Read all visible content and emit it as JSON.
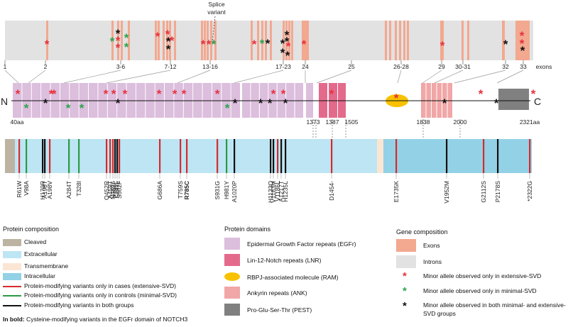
{
  "colors": {
    "exon": "#f3a890",
    "intron": "#e2e2e2",
    "egf": "#dcbedd",
    "lnr": "#e46a8c",
    "ram": "#f8c200",
    "ank": "#f1a7a7",
    "pest": "#808080",
    "cleaved": "#bdb3a2",
    "extracellular": "#bde5f4",
    "transmembrane": "#fbe6d4",
    "intracellular": "#93d1e6",
    "case_line": "#d62b2b",
    "control_line": "#2c9a44",
    "both_line": "#111111",
    "star_case": "#e8313c",
    "star_control": "#2ca44c",
    "star_both": "#111111"
  },
  "gene": {
    "splice_label": "Splice variant",
    "exons_label": "exons",
    "exon_numbers": [
      "1",
      "2",
      "3-6",
      "7-12",
      "13-16",
      "17-23",
      "24",
      "25",
      "26-28",
      "29",
      "30-31",
      "32",
      "33"
    ]
  },
  "protein": {
    "n_label": "N",
    "c_label": "C",
    "positions": [
      "40aa",
      "1373",
      "1387",
      "1505",
      "1838",
      "2000",
      "2321aa"
    ]
  },
  "variants": [
    {
      "label": "R61W",
      "group": "case",
      "bold": false
    },
    {
      "label": "V98A",
      "group": "control",
      "bold": false
    },
    {
      "label": "H170R",
      "group": "both",
      "bold": false
    },
    {
      "label": "A198T",
      "group": "both",
      "bold": false
    },
    {
      "label": "A198V",
      "group": "case",
      "bold": false
    },
    {
      "label": "A284T",
      "group": "control",
      "bold": false
    },
    {
      "label": "T328I",
      "group": "control",
      "bold": false
    },
    {
      "label": "Q452R",
      "group": "case",
      "bold": false
    },
    {
      "label": "A459T",
      "group": "case",
      "bold": false
    },
    {
      "label": "N489S",
      "group": "case",
      "bold": false
    },
    {
      "label": "P496L",
      "group": "both",
      "bold": false
    },
    {
      "label": "S497L",
      "group": "both",
      "bold": false
    },
    {
      "label": "S502F",
      "group": "case",
      "bold": false
    },
    {
      "label": "G686A",
      "group": "case",
      "bold": false
    },
    {
      "label": "T759S",
      "group": "case",
      "bold": false
    },
    {
      "label": "R785C",
      "group": "case",
      "bold": true
    },
    {
      "label": "S931G",
      "group": "case",
      "bold": false
    },
    {
      "label": "H981Y",
      "group": "control",
      "bold": false
    },
    {
      "label": "A1020P",
      "group": "both",
      "bold": false
    },
    {
      "label": "H1133Q",
      "group": "both",
      "bold": false
    },
    {
      "label": "V1183M",
      "group": "both",
      "bold": false
    },
    {
      "label": "V1186L",
      "group": "case",
      "bold": false
    },
    {
      "label": "A1217T",
      "group": "both",
      "bold": false
    },
    {
      "label": "H1235L",
      "group": "both",
      "bold": false
    },
    {
      "label": "D1454-",
      "group": "case",
      "bold": false
    },
    {
      "label": "E1735K",
      "group": "case",
      "bold": false
    },
    {
      "label": "V1952M",
      "group": "both",
      "bold": false
    },
    {
      "label": "G2112S",
      "group": "case",
      "bold": false
    },
    {
      "label": "P2178S",
      "group": "both",
      "bold": false
    },
    {
      "label": "*2322G",
      "group": "case",
      "bold": false
    }
  ],
  "legend": {
    "composition_title": "Protein composition",
    "cleaved": "Cleaved",
    "extracellular": "Extracellular",
    "transmembrane": "Transmembrane",
    "intracellular": "Intracellular",
    "line_case": "Protein-modifying variants only in cases (extensive-SVD)",
    "line_control": "Protein-modifying variants only in controls (minimal-SVD)",
    "line_both": "Protein-modifying variants in both groups",
    "bold_note_bold": "In bold:",
    "bold_note_rest": " Cysteine-modifying variants in the EGFr domain of NOTCH3",
    "domains_title": "Protein domains",
    "egf": "Epidermal Growth Factor repeats (EGFr)",
    "lnr": "Lin-12-Notch repeats (LNR)",
    "ram": "RBPJ-associated molecule (RAM)",
    "ank": "Ankyrin repeats (ANK)",
    "pest": "Pro-Glu-Ser-Thr (PEST)",
    "gene_title": "Gene composition",
    "exons": "Exons",
    "introns": "Introns",
    "star_case": "Minor allele observed only in extensive-SVD",
    "star_control": "Minor allele observed only in minimal-SVD",
    "star_both_1": "Minor allele observed in both minimal- and extensive-",
    "star_both_2": "SVD groups"
  }
}
